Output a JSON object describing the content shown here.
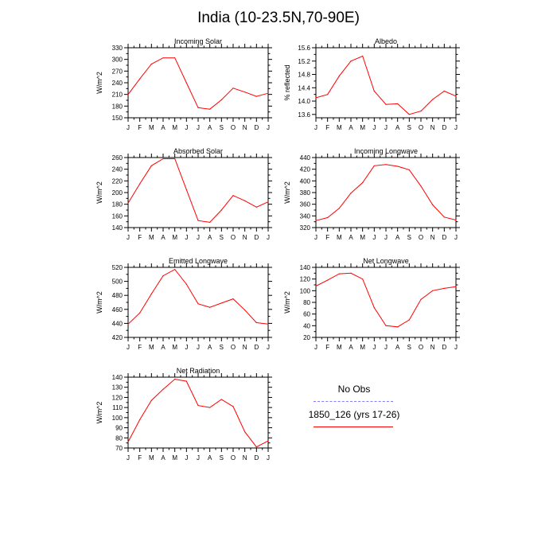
{
  "title": "India (10-23.5N,70-90E)",
  "legend": {
    "obs_label": "No Obs",
    "model_label": "1850_126 (yrs 17-26)",
    "obs_color": "#8080ff",
    "model_color": "#ff0000"
  },
  "months": [
    "J",
    "F",
    "M",
    "A",
    "M",
    "J",
    "J",
    "A",
    "S",
    "O",
    "N",
    "D",
    "J"
  ],
  "chart_data": [
    {
      "type": "line",
      "title": "Incoming Solar",
      "ylabel": "W/m^2",
      "ylim": [
        150,
        330
      ],
      "yticks": [
        150,
        180,
        210,
        240,
        270,
        300,
        330
      ],
      "series": [
        {
          "color": "#ff0000",
          "values": [
            210,
            250,
            288,
            304,
            304,
            240,
            176,
            172,
            196,
            226,
            216,
            205,
            213
          ]
        }
      ]
    },
    {
      "type": "line",
      "title": "Albedo",
      "ylabel": "% reflected",
      "ylim": [
        13.5,
        15.6
      ],
      "yticks": [
        13.6,
        14.0,
        14.4,
        14.8,
        15.2,
        15.6
      ],
      "ytick_labels": [
        "13.6",
        "14.0",
        "14.4",
        "14.8",
        "15.2",
        "15.6"
      ],
      "series": [
        {
          "color": "#ff0000",
          "values": [
            14.1,
            14.2,
            14.75,
            15.2,
            15.35,
            14.3,
            13.9,
            13.92,
            13.6,
            13.7,
            14.05,
            14.3,
            14.15
          ]
        }
      ]
    },
    {
      "type": "line",
      "title": "Absorbed Solar",
      "ylabel": "W/m^2",
      "ylim": [
        140,
        260
      ],
      "yticks": [
        140,
        160,
        180,
        200,
        220,
        240,
        260
      ],
      "series": [
        {
          "color": "#ff0000",
          "values": [
            182,
            215,
            246,
            258,
            258,
            205,
            152,
            149,
            170,
            195,
            186,
            175,
            184
          ]
        }
      ]
    },
    {
      "type": "line",
      "title": "Incoming Longwave",
      "ylabel": "W/m^2",
      "ylim": [
        320,
        440
      ],
      "yticks": [
        320,
        340,
        360,
        380,
        400,
        420,
        440
      ],
      "series": [
        {
          "color": "#ff0000",
          "values": [
            332,
            337,
            353,
            379,
            397,
            426,
            428,
            425,
            419,
            391,
            359,
            338,
            333
          ]
        }
      ]
    },
    {
      "type": "line",
      "title": "Emitted Longwave",
      "ylabel": "W/m^2",
      "ylim": [
        420,
        520
      ],
      "yticks": [
        420,
        440,
        460,
        480,
        500,
        520
      ],
      "series": [
        {
          "color": "#ff0000",
          "values": [
            439,
            455,
            482,
            508,
            517,
            496,
            468,
            463,
            469,
            475,
            459,
            441,
            439
          ]
        }
      ]
    },
    {
      "type": "line",
      "title": "Net Longwave",
      "ylabel": "W/m^2",
      "ylim": [
        20,
        140
      ],
      "yticks": [
        20,
        40,
        60,
        80,
        100,
        120,
        140
      ],
      "series": [
        {
          "color": "#ff0000",
          "values": [
            108,
            118,
            129,
            130,
            120,
            71,
            40,
            38,
            50,
            85,
            100,
            104,
            107
          ]
        }
      ]
    },
    {
      "type": "line",
      "title": "Net Radiation",
      "ylabel": "W/m^2",
      "ylim": [
        70,
        140
      ],
      "yticks": [
        70,
        80,
        90,
        100,
        110,
        120,
        130,
        140
      ],
      "series": [
        {
          "color": "#ff0000",
          "values": [
            76,
            98,
            117,
            128,
            138,
            136,
            112,
            110,
            118,
            111,
            86,
            71,
            77
          ]
        }
      ]
    }
  ]
}
